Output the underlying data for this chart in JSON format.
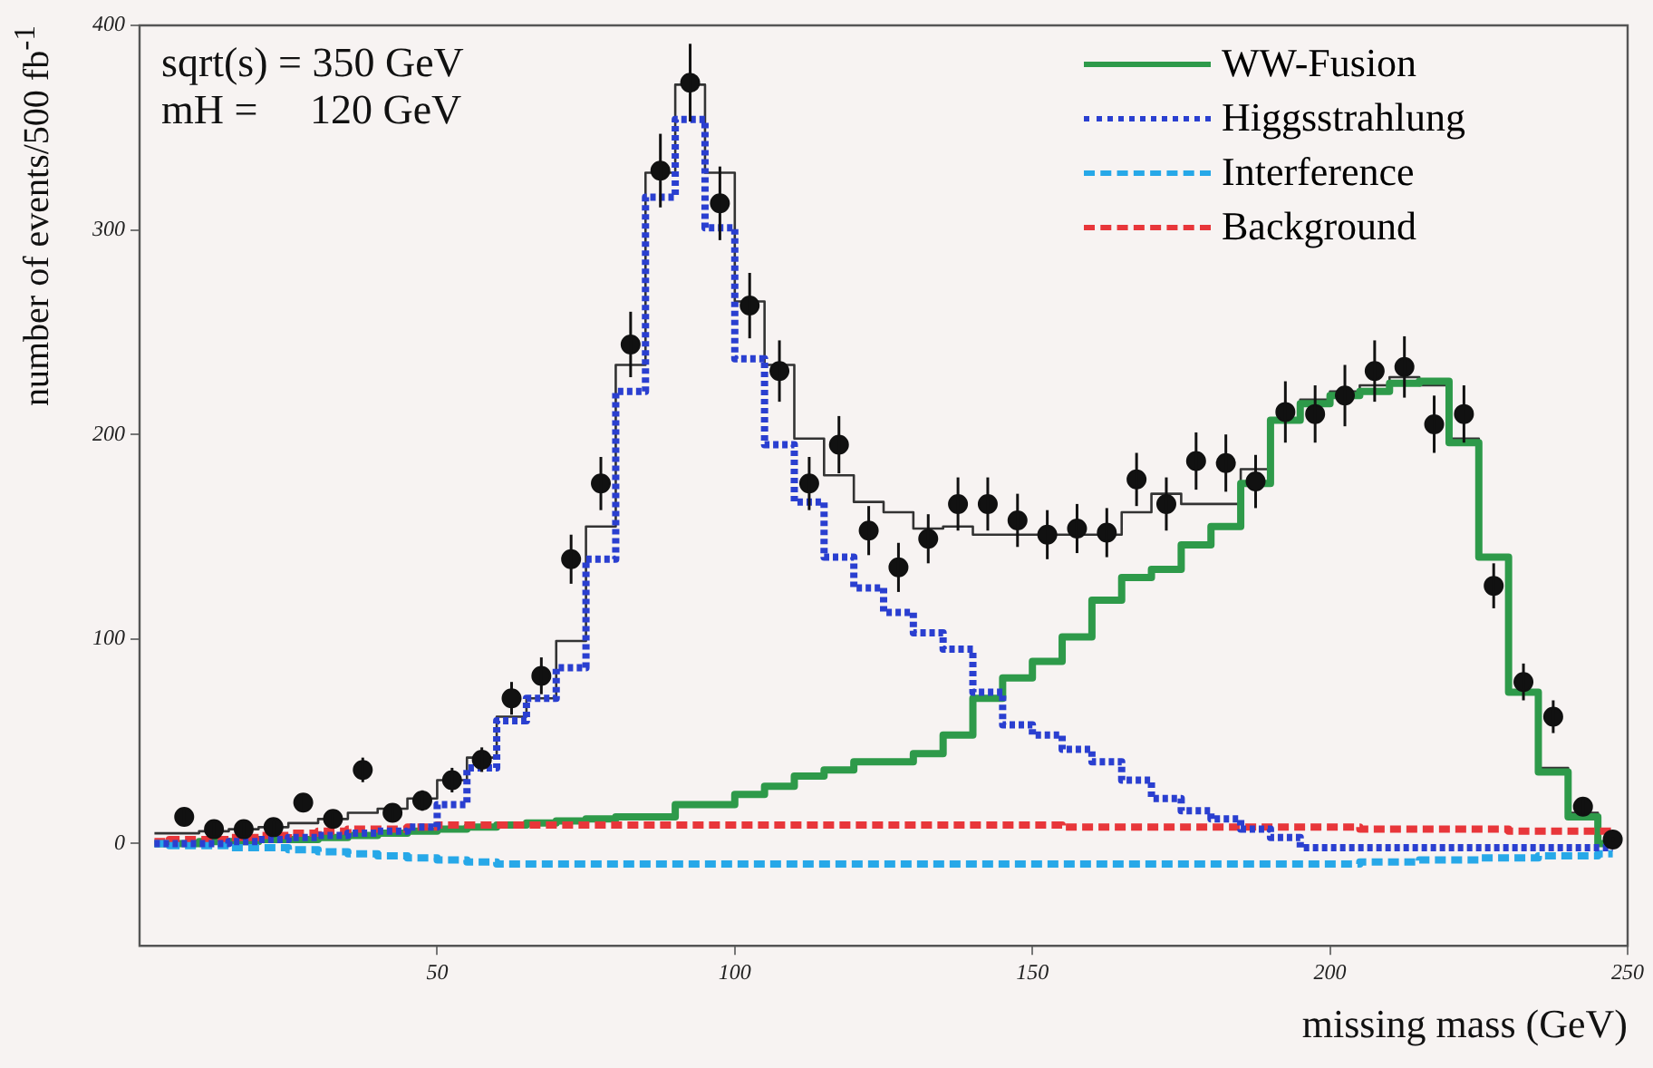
{
  "chart_data": {
    "type": "step",
    "xlabel": "missing mass (GeV)",
    "ylabel": "number of events/500 fb$^{-1}$",
    "annotations": [
      "sqrt(s) = 350 GeV",
      "mH =     120 GeV"
    ],
    "xlim": [
      0,
      250
    ],
    "xticks": [
      50,
      100,
      150,
      200,
      250
    ],
    "ylim": [
      -50,
      400
    ],
    "yticks": [
      0,
      100,
      200,
      300,
      400
    ],
    "grid": false,
    "legend": "top right",
    "x": [
      2.5,
      7.5,
      12.5,
      17.5,
      22.5,
      27.5,
      32.5,
      37.5,
      42.5,
      47.5,
      52.5,
      57.5,
      62.5,
      67.5,
      72.5,
      77.5,
      82.5,
      87.5,
      92.5,
      97.5,
      102.5,
      107.5,
      112.5,
      117.5,
      122.5,
      127.5,
      132.5,
      137.5,
      142.5,
      147.5,
      152.5,
      157.5,
      162.5,
      167.5,
      172.5,
      177.5,
      182.5,
      187.5,
      192.5,
      197.5,
      202.5,
      207.5,
      212.5,
      217.5,
      222.5,
      227.5,
      232.5,
      237.5,
      242.5,
      247.5
    ],
    "series": [
      {
        "color": "#2e9a4a",
        "line_style": "solid",
        "values": [
          0,
          0,
          1,
          1,
          2,
          2,
          3,
          4,
          5,
          6,
          7,
          8,
          9,
          10,
          11,
          12,
          13,
          13,
          19,
          19,
          24,
          28,
          33,
          36,
          40,
          40,
          44,
          53,
          71,
          81,
          89,
          101,
          119,
          130,
          134,
          146,
          155,
          176,
          207,
          215,
          219,
          221,
          225,
          226,
          196,
          140,
          74,
          35,
          13,
          0
        ],
        "name": "WW-Fusion"
      },
      {
        "color": "#2a3fd0",
        "line_style": "dotted",
        "values": [
          0,
          0,
          0,
          1,
          2,
          3,
          4,
          5,
          6,
          8,
          19,
          37,
          60,
          71,
          86,
          139,
          221,
          316,
          354,
          301,
          237,
          195,
          167,
          140,
          125,
          113,
          103,
          95,
          74,
          58,
          53,
          46,
          40,
          31,
          22,
          16,
          12,
          7,
          3,
          -2,
          -2,
          -2,
          -2,
          -2,
          -2,
          -2,
          -2,
          -2,
          -2,
          -2
        ],
        "name": "Higgsstrahlung"
      },
      {
        "color": "#27a8e8",
        "line_style": "dashed",
        "values": [
          0,
          -1,
          -1,
          -2,
          -2,
          -3,
          -4,
          -5,
          -6,
          -7,
          -8,
          -9,
          -10,
          -10,
          -10,
          -10,
          -10,
          -10,
          -10,
          -10,
          -10,
          -10,
          -10,
          -10,
          -10,
          -10,
          -10,
          -10,
          -10,
          -10,
          -10,
          -10,
          -10,
          -10,
          -10,
          -10,
          -10,
          -10,
          -10,
          -10,
          -10,
          -9,
          -9,
          -8,
          -8,
          -7,
          -7,
          -6,
          -6,
          -5
        ],
        "name": "Interference"
      },
      {
        "color": "#e8363a",
        "line_style": "dashed",
        "values": [
          1,
          2,
          2,
          3,
          4,
          5,
          6,
          7,
          7,
          8,
          9,
          9,
          9,
          9,
          9,
          9,
          9,
          9,
          9,
          9,
          9,
          9,
          9,
          9,
          9,
          9,
          9,
          9,
          9,
          9,
          9,
          8,
          8,
          8,
          8,
          8,
          8,
          8,
          8,
          8,
          8,
          7,
          7,
          7,
          7,
          7,
          6,
          6,
          6,
          6
        ],
        "name": "Background"
      },
      {
        "color": "#333333",
        "line_style": "solid",
        "values": [
          5,
          5,
          6,
          7,
          8,
          10,
          12,
          15,
          17,
          22,
          31,
          42,
          62,
          71,
          99,
          155,
          234,
          328,
          371,
          328,
          265,
          234,
          198,
          180,
          167,
          162,
          154,
          155,
          151,
          151,
          151,
          151,
          151,
          162,
          171,
          166,
          166,
          183,
          207,
          217,
          221,
          224,
          228,
          224,
          198,
          140,
          74,
          37,
          15,
          0
        ]
      },
      {
        "type": "scatter",
        "marker": "circle",
        "color": "#111111",
        "x": [
          7.5,
          12.5,
          17.5,
          22.5,
          27.5,
          32.5,
          37.5,
          42.5,
          47.5,
          52.5,
          57.5,
          62.5,
          67.5,
          72.5,
          77.5,
          82.5,
          87.5,
          92.5,
          97.5,
          102.5,
          107.5,
          112.5,
          117.5,
          122.5,
          127.5,
          132.5,
          137.5,
          142.5,
          147.5,
          152.5,
          157.5,
          162.5,
          167.5,
          172.5,
          177.5,
          182.5,
          187.5,
          192.5,
          197.5,
          202.5,
          207.5,
          212.5,
          217.5,
          222.5,
          227.5,
          232.5,
          237.5,
          242.5,
          247.5
        ],
        "values": [
          13,
          7,
          7,
          8,
          20,
          12,
          36,
          15,
          21,
          31,
          41,
          71,
          82,
          139,
          176,
          244,
          329,
          372,
          313,
          263,
          231,
          176,
          195,
          153,
          135,
          149,
          166,
          166,
          158,
          151,
          154,
          152,
          178,
          166,
          187,
          186,
          177,
          211,
          210,
          219,
          231,
          233,
          205,
          210,
          126,
          79,
          62,
          18,
          2
        ],
        "errors": [
          4,
          3,
          3,
          3,
          4,
          3,
          6,
          4,
          5,
          6,
          6,
          8,
          9,
          12,
          13,
          16,
          18,
          19,
          18,
          16,
          15,
          13,
          14,
          12,
          12,
          12,
          13,
          13,
          13,
          12,
          12,
          12,
          13,
          13,
          14,
          14,
          13,
          15,
          14,
          15,
          15,
          15,
          14,
          14,
          11,
          9,
          8,
          4,
          1
        ]
      }
    ]
  }
}
